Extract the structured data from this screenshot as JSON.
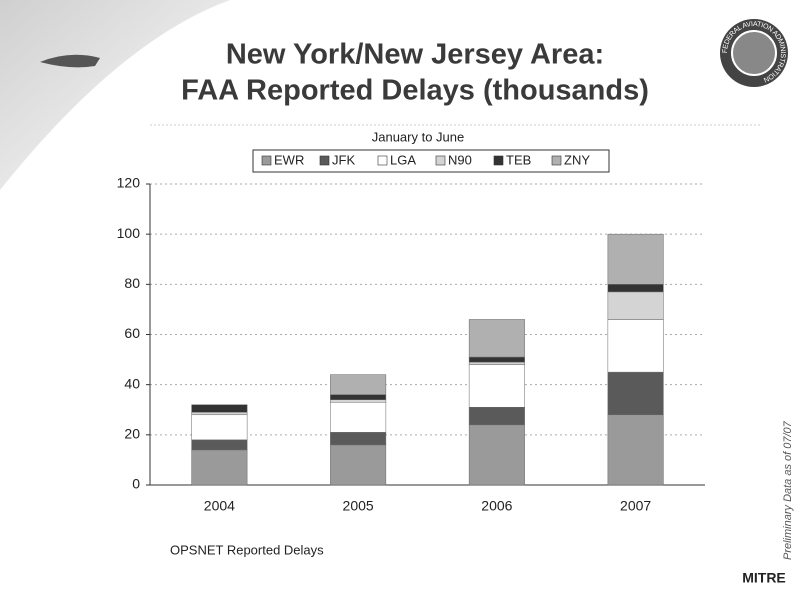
{
  "chart_data": {
    "type": "stacked_bar",
    "title": [
      "New York/New Jersey Area:",
      "FAA Reported Delays (thousands)"
    ],
    "subtitle": "January to June",
    "source": "OPSNET Reported Delays",
    "categories": [
      "2004",
      "2005",
      "2006",
      "2007"
    ],
    "series": [
      {
        "name": "EWR",
        "color": "#9a9a9a",
        "values": [
          14,
          16,
          24,
          28
        ]
      },
      {
        "name": "JFK",
        "color": "#5a5a5a",
        "values": [
          4,
          5,
          7,
          17
        ]
      },
      {
        "name": "LGA",
        "color": "#ffffff",
        "values": [
          10,
          12,
          17,
          21
        ]
      },
      {
        "name": "N90",
        "color": "#d4d4d4",
        "values": [
          1,
          1,
          1,
          11
        ]
      },
      {
        "name": "TEB",
        "color": "#333333",
        "values": [
          3,
          2,
          2,
          3
        ]
      },
      {
        "name": "ZNY",
        "color": "#b0b0b0",
        "values": [
          0,
          8,
          15,
          20
        ]
      }
    ],
    "ylim": [
      0,
      120
    ],
    "yticks": [
      0,
      20,
      40,
      60,
      80,
      100,
      120
    ],
    "grid": true
  },
  "slide": {
    "logo": "MITRE",
    "side_note": "Preliminary Data as of 07/07",
    "seal": "FEDERAL AVIATION ADMINISTRATION"
  }
}
